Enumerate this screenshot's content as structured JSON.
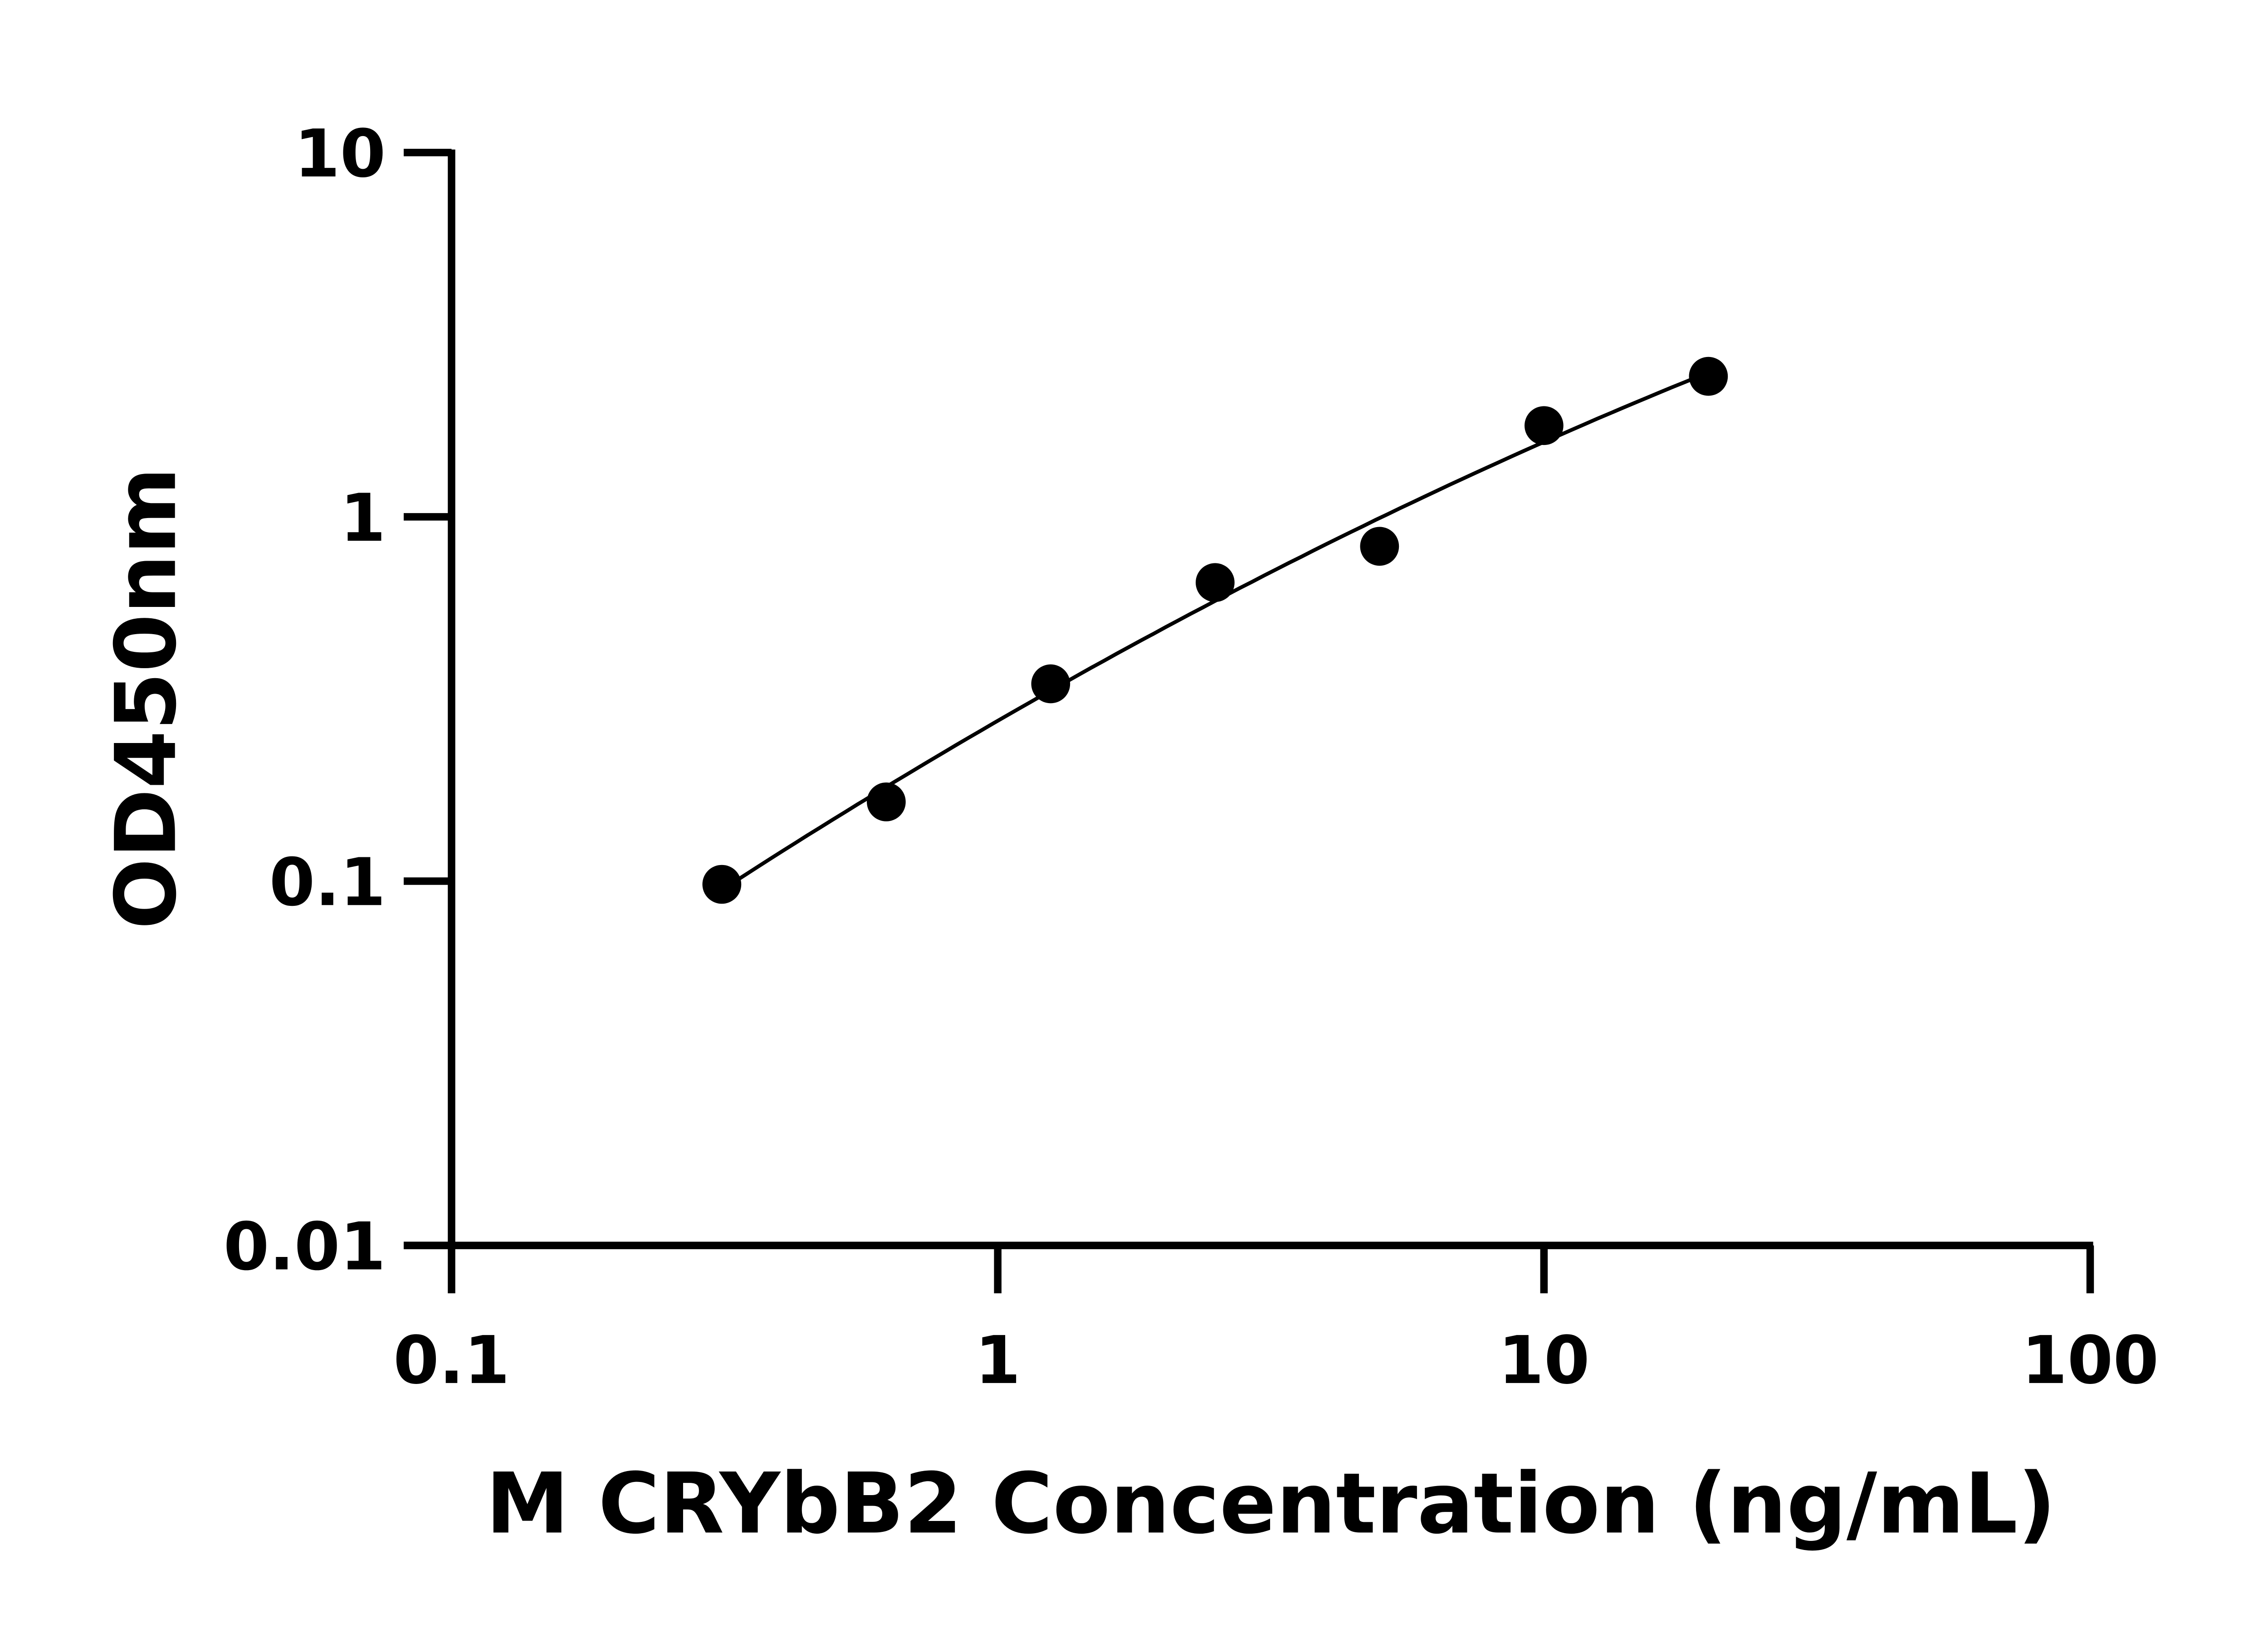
{
  "chart_data": {
    "type": "scatter",
    "title": "",
    "xlabel": "M CRYbB2 Concentration (ng/mL)",
    "ylabel": "OD450nm",
    "xscale": "log",
    "yscale": "log",
    "xlim": [
      0.1,
      100
    ],
    "ylim": [
      0.01,
      10
    ],
    "xticks": [
      "0.1",
      "1",
      "10",
      "100"
    ],
    "yticks": [
      "0.01",
      "0.1",
      "1",
      "10"
    ],
    "grid": false,
    "legend": "none",
    "fit_curve": true,
    "color": "#000000",
    "x": [
      0.3125,
      0.625,
      1.25,
      2.5,
      5,
      10,
      20
    ],
    "y": [
      0.098,
      0.165,
      0.348,
      0.66,
      0.83,
      1.78,
      2.43
    ]
  }
}
